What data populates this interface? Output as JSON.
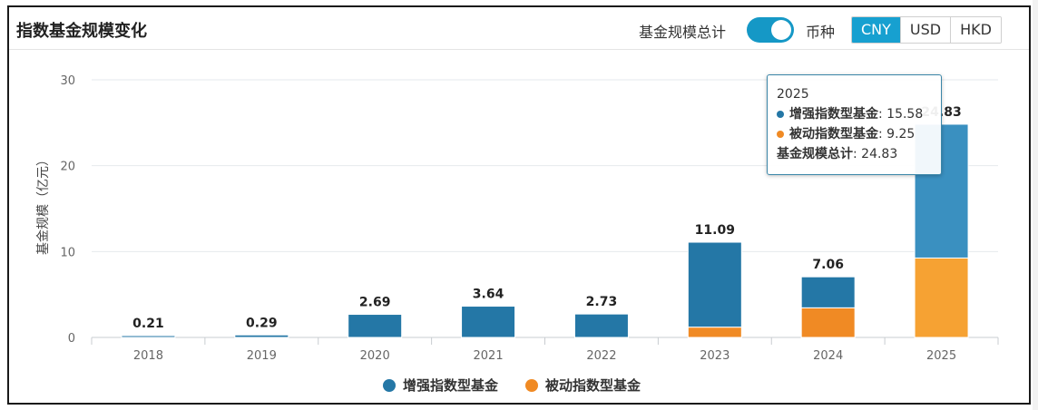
{
  "header": {
    "title": "指数基金规模变化",
    "toggle_label": "基金规模总计",
    "toggle_on": true,
    "currency_label": "币种",
    "currencies": [
      "CNY",
      "USD",
      "HKD"
    ],
    "active_currency": "CNY"
  },
  "colors": {
    "accent": "#17a0d0",
    "series1": "#2477a6",
    "series2": "#f08a24"
  },
  "chart_data": {
    "type": "bar",
    "stacked": true,
    "categories": [
      "2018",
      "2019",
      "2020",
      "2021",
      "2022",
      "2023",
      "2024",
      "2025"
    ],
    "series": [
      {
        "name": "增强指数型基金",
        "values": [
          0.21,
          0.29,
          2.69,
          3.64,
          2.73,
          9.89,
          3.61,
          15.58
        ]
      },
      {
        "name": "被动指数型基金",
        "values": [
          0,
          0,
          0,
          0,
          0,
          1.2,
          3.45,
          9.25
        ]
      }
    ],
    "totals": [
      "0.21",
      "0.29",
      "2.69",
      "3.64",
      "2.73",
      "11.09",
      "7.06",
      "24.83"
    ],
    "ylabel": "基金规模（亿元）",
    "ylim": [
      0,
      30
    ],
    "yticks": [
      "0",
      "10",
      "20",
      "30"
    ],
    "grid": true,
    "legend": "bottom-center"
  },
  "tooltip": {
    "category": "2025",
    "row1_name": "增强指数型基金",
    "row1_value": "15.58",
    "row2_name": "被动指数型基金",
    "row2_value": "9.25",
    "total_name": "基金规模总计",
    "total_value": "24.83"
  }
}
